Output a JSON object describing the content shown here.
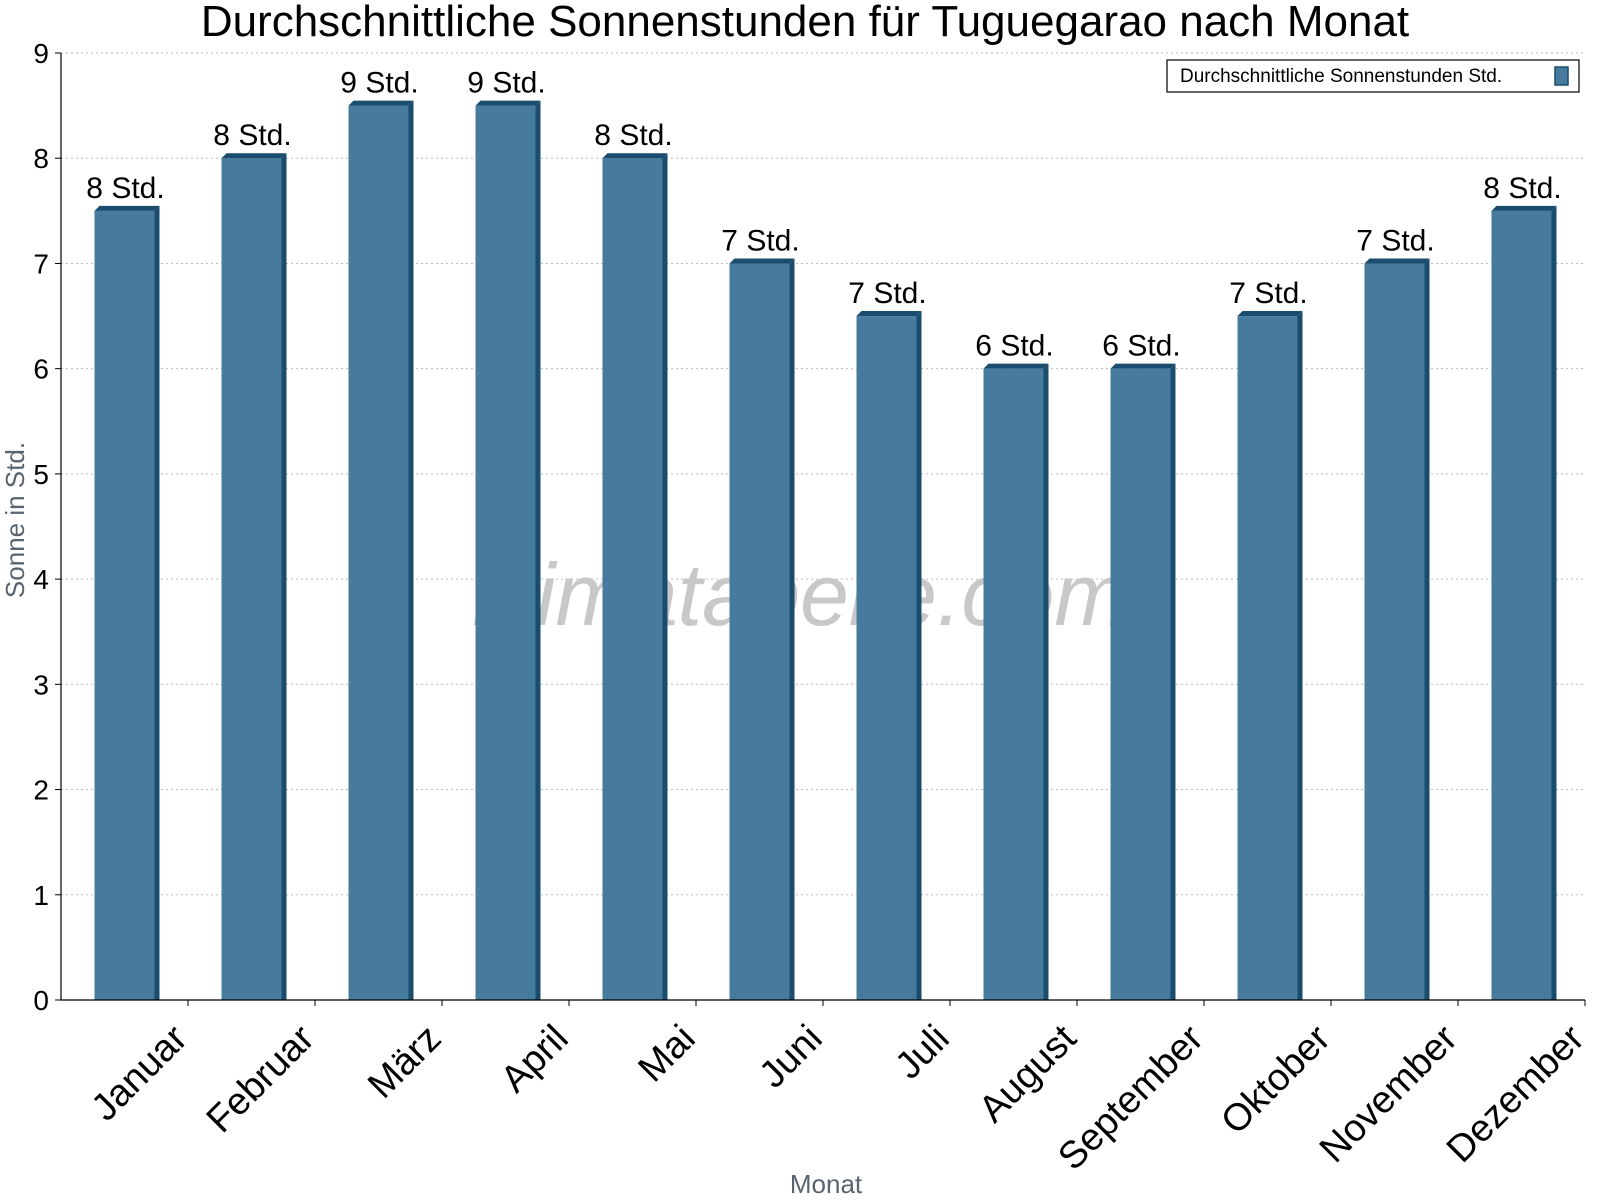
{
  "chart_data": {
    "type": "bar",
    "title": "Durchschnittliche Sonnenstunden für Tuguegarao nach Monat",
    "xlabel": "Monat",
    "ylabel": "Sonne in Std.",
    "ylim": [
      0,
      9
    ],
    "yticks": [
      0,
      1,
      2,
      3,
      4,
      5,
      6,
      7,
      8,
      9
    ],
    "grid": true,
    "legend_position": "top-right",
    "categories": [
      "Januar",
      "Februar",
      "März",
      "April",
      "Mai",
      "Juni",
      "Juli",
      "August",
      "September",
      "Oktober",
      "November",
      "Dezember"
    ],
    "series": [
      {
        "name": "Durchschnittliche Sonnenstunden Std.",
        "values": [
          7.5,
          8.0,
          8.5,
          8.5,
          8.0,
          7.0,
          6.5,
          6.0,
          6.0,
          6.5,
          7.0,
          7.5
        ],
        "labels": [
          "8 Std.",
          "8 Std.",
          "9 Std.",
          "9 Std.",
          "8 Std.",
          "7 Std.",
          "7 Std.",
          "6 Std.",
          "6 Std.",
          "7 Std.",
          "7 Std.",
          "8 Std."
        ],
        "color": "#467b9d",
        "edge_color": "#1a4c6e"
      }
    ],
    "watermark": "klimatabelle.com"
  }
}
